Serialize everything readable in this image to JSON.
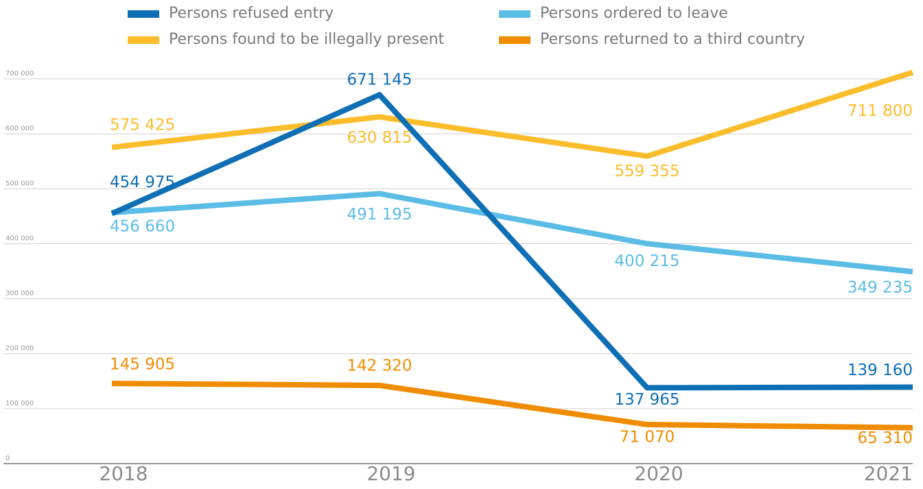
{
  "chart_data": {
    "type": "line",
    "categories": [
      "2018",
      "2019",
      "2020",
      "2021"
    ],
    "series": [
      {
        "name": "Persons refused entry",
        "color": "#0e6fb5",
        "values": [
          454975,
          671145,
          137965,
          139160
        ],
        "value_labels": [
          "454 975",
          "671 145",
          "137 965",
          "139 160"
        ]
      },
      {
        "name": "Persons ordered to leave",
        "color": "#5bbde6",
        "values": [
          456660,
          491195,
          400215,
          349235
        ],
        "value_labels": [
          "456 660",
          "491 195",
          "400 215",
          "349 235"
        ]
      },
      {
        "name": "Persons found to be illegally present",
        "color": "#fbbd2c",
        "values": [
          575425,
          630815,
          559355,
          711800
        ],
        "value_labels": [
          "575 425",
          "630 815",
          "559 355",
          "711 800"
        ]
      },
      {
        "name": "Persons returned to a third country",
        "color": "#f08c00",
        "values": [
          145905,
          142320,
          71070,
          65310
        ],
        "value_labels": [
          "145 905",
          "142 320",
          "71 070",
          "65 310"
        ]
      }
    ],
    "ylim": [
      0,
      700000
    ],
    "yticks": [
      0,
      {
        "value": 100000,
        "label": "100 000"
      },
      {
        "value": 200000,
        "label": "200 000"
      },
      {
        "value": 300000,
        "label": "300 000"
      },
      {
        "value": 400000,
        "label": "400 000"
      },
      {
        "value": 500000,
        "label": "500 000"
      },
      {
        "value": 600000,
        "label": "600 000"
      },
      {
        "value": 700000,
        "label": "700 000"
      }
    ],
    "grid": true
  }
}
